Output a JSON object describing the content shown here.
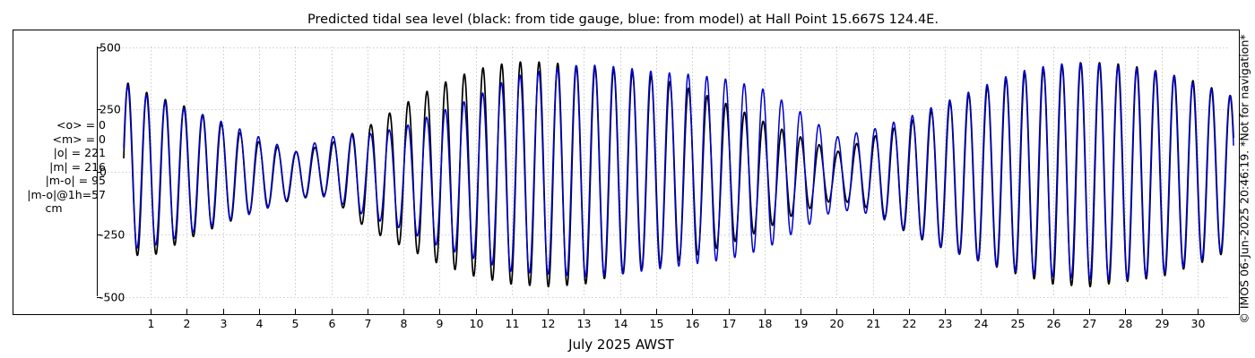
{
  "chart_data": {
    "type": "line",
    "title": "Predicted tidal sea level (black: from tide gauge, blue: from model) at Hall Point 15.667S 124.4E.",
    "xlabel": "July 2025 AWST",
    "ylabel": "",
    "xlim": [
      0.25,
      31.0
    ],
    "ylim": [
      -520,
      520
    ],
    "x_ticks": [
      1,
      2,
      3,
      4,
      5,
      6,
      7,
      8,
      9,
      10,
      11,
      12,
      13,
      14,
      15,
      16,
      17,
      18,
      19,
      20,
      21,
      22,
      23,
      24,
      25,
      26,
      27,
      28,
      29,
      30
    ],
    "y_ticks": [
      -500,
      -250,
      0,
      250,
      500
    ],
    "y_tick_labels": [
      "-500",
      "-250",
      "0",
      "250",
      "500"
    ],
    "grid": true,
    "tide_period_days": 0.517525,
    "first_high_water_day": 0.37,
    "series": [
      {
        "color": "#000000",
        "envelope": [
          {
            "day": 0.3,
            "high": 360,
            "low": -330
          },
          {
            "day": 1.0,
            "high": 310,
            "low": -340
          },
          {
            "day": 2.0,
            "high": 260,
            "low": -270
          },
          {
            "day": 3.0,
            "high": 190,
            "low": -210
          },
          {
            "day": 4.0,
            "high": 120,
            "low": -150
          },
          {
            "day": 5.0,
            "high": 80,
            "low": -110
          },
          {
            "day": 5.9,
            "high": 110,
            "low": -90
          },
          {
            "day": 7.0,
            "high": 180,
            "low": -230
          },
          {
            "day": 8.0,
            "high": 270,
            "low": -300
          },
          {
            "day": 9.0,
            "high": 350,
            "low": -370
          },
          {
            "day": 10.0,
            "high": 410,
            "low": -420
          },
          {
            "day": 11.0,
            "high": 440,
            "low": -450
          },
          {
            "day": 12.0,
            "high": 440,
            "low": -460
          },
          {
            "day": 13.0,
            "high": 420,
            "low": -450
          },
          {
            "day": 14.0,
            "high": 410,
            "low": -410
          },
          {
            "day": 15.0,
            "high": 380,
            "low": -380
          },
          {
            "day": 16.0,
            "high": 330,
            "low": -340
          },
          {
            "day": 17.0,
            "high": 270,
            "low": -290
          },
          {
            "day": 18.0,
            "high": 200,
            "low": -230
          },
          {
            "day": 19.0,
            "high": 140,
            "low": -160
          },
          {
            "day": 20.0,
            "high": 80,
            "low": -110
          },
          {
            "day": 21.0,
            "high": 140,
            "low": -150
          },
          {
            "day": 22.0,
            "high": 200,
            "low": -250
          },
          {
            "day": 23.0,
            "high": 270,
            "low": -310
          },
          {
            "day": 24.0,
            "high": 330,
            "low": -360
          },
          {
            "day": 25.0,
            "high": 390,
            "low": -410
          },
          {
            "day": 26.0,
            "high": 420,
            "low": -450
          },
          {
            "day": 27.0,
            "high": 440,
            "low": -460
          },
          {
            "day": 28.0,
            "high": 430,
            "low": -440
          },
          {
            "day": 29.0,
            "high": 400,
            "low": -420
          },
          {
            "day": 30.0,
            "high": 360,
            "low": -370
          },
          {
            "day": 31.0,
            "high": 300,
            "low": -310
          }
        ]
      },
      {
        "color": "#0000cc",
        "envelope": [
          {
            "day": 0.3,
            "high": 350,
            "low": -310
          },
          {
            "day": 1.0,
            "high": 300,
            "low": -300
          },
          {
            "day": 2.0,
            "high": 250,
            "low": -250
          },
          {
            "day": 3.0,
            "high": 200,
            "low": -200
          },
          {
            "day": 4.0,
            "high": 140,
            "low": -160
          },
          {
            "day": 5.0,
            "high": 80,
            "low": -100
          },
          {
            "day": 5.9,
            "high": 140,
            "low": -100
          },
          {
            "day": 7.0,
            "high": 150,
            "low": -180
          },
          {
            "day": 8.0,
            "high": 180,
            "low": -230
          },
          {
            "day": 9.0,
            "high": 240,
            "low": -300
          },
          {
            "day": 10.0,
            "high": 300,
            "low": -350
          },
          {
            "day": 11.0,
            "high": 380,
            "low": -400
          },
          {
            "day": 12.0,
            "high": 410,
            "low": -410
          },
          {
            "day": 13.0,
            "high": 430,
            "low": -420
          },
          {
            "day": 14.0,
            "high": 420,
            "low": -410
          },
          {
            "day": 15.0,
            "high": 400,
            "low": -390
          },
          {
            "day": 16.0,
            "high": 390,
            "low": -370
          },
          {
            "day": 17.0,
            "high": 370,
            "low": -350
          },
          {
            "day": 18.0,
            "high": 330,
            "low": -310
          },
          {
            "day": 19.0,
            "high": 240,
            "low": -230
          },
          {
            "day": 20.0,
            "high": 140,
            "low": -150
          },
          {
            "day": 21.0,
            "high": 170,
            "low": -170
          },
          {
            "day": 22.0,
            "high": 220,
            "low": -240
          },
          {
            "day": 23.0,
            "high": 280,
            "low": -310
          },
          {
            "day": 24.0,
            "high": 340,
            "low": -360
          },
          {
            "day": 25.0,
            "high": 400,
            "low": -400
          },
          {
            "day": 26.0,
            "high": 430,
            "low": -420
          },
          {
            "day": 27.0,
            "high": 440,
            "low": -430
          },
          {
            "day": 28.0,
            "high": 420,
            "low": -430
          },
          {
            "day": 29.0,
            "high": 400,
            "low": -410
          },
          {
            "day": 30.0,
            "high": 350,
            "low": -360
          },
          {
            "day": 31.0,
            "high": 300,
            "low": -300
          }
        ]
      }
    ]
  },
  "stats": {
    "mean_o": "<o> = 0",
    "mean_m": "<m> = 0",
    "abs_o": "|o| = 221",
    "abs_m": "|m| = 216",
    "abs_diff": "|m-o| = 95",
    "abs_diff_1h": "|m-o|@1h=57",
    "unit": "cm"
  },
  "side_note": "© IMOS 06-Jun-2025 20:46:19. *Not for navigation*"
}
